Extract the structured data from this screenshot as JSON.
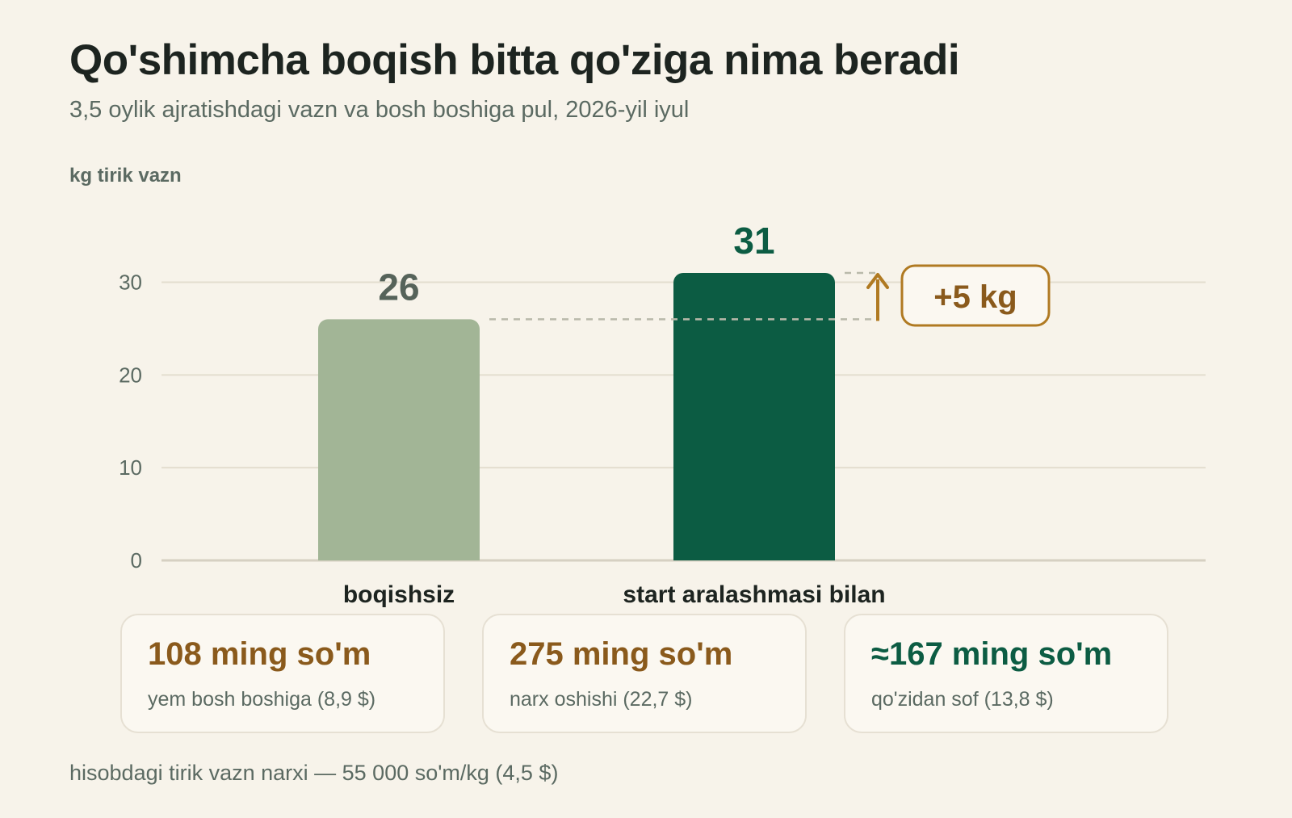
{
  "title": "Qo'shimcha boqish bitta qo'ziga nima beradi",
  "subtitle": "3,5 oylik ajratishdagi vazn va bosh boshiga pul, 2026-yil iyul",
  "chart_data": {
    "type": "bar",
    "ylabel": "kg tirik vazn",
    "xlabel": "",
    "categories": [
      "boqishsiz",
      "start aralashmasi bilan"
    ],
    "values": [
      26,
      31
    ],
    "value_labels": [
      "26",
      "31"
    ],
    "ylim": [
      0,
      31
    ],
    "yticks": [
      0,
      10,
      20,
      30
    ],
    "grid": true,
    "colors": [
      "#a2b596",
      "#0c5c43"
    ],
    "value_label_colors": [
      "#56635a",
      "#0c5c43"
    ],
    "annotation": {
      "text": "+5 kg",
      "from_value": 26,
      "to_value": 31,
      "color": "#b07a22"
    }
  },
  "cards": [
    {
      "value": "108 ming so'm",
      "label": "yem bosh boshiga (8,9 $)",
      "color": "#8a5a1c"
    },
    {
      "value": "275 ming so'm",
      "label": "narx oshishi (22,7 $)",
      "color": "#8a5a1c"
    },
    {
      "value": "≈167 ming so'm",
      "label": "qo'zidan sof (13,8 $)",
      "color": "#0c5c43"
    }
  ],
  "footnote": "hisobdagi tirik vazn narxi — 55 000 so'm/kg (4,5 $)"
}
